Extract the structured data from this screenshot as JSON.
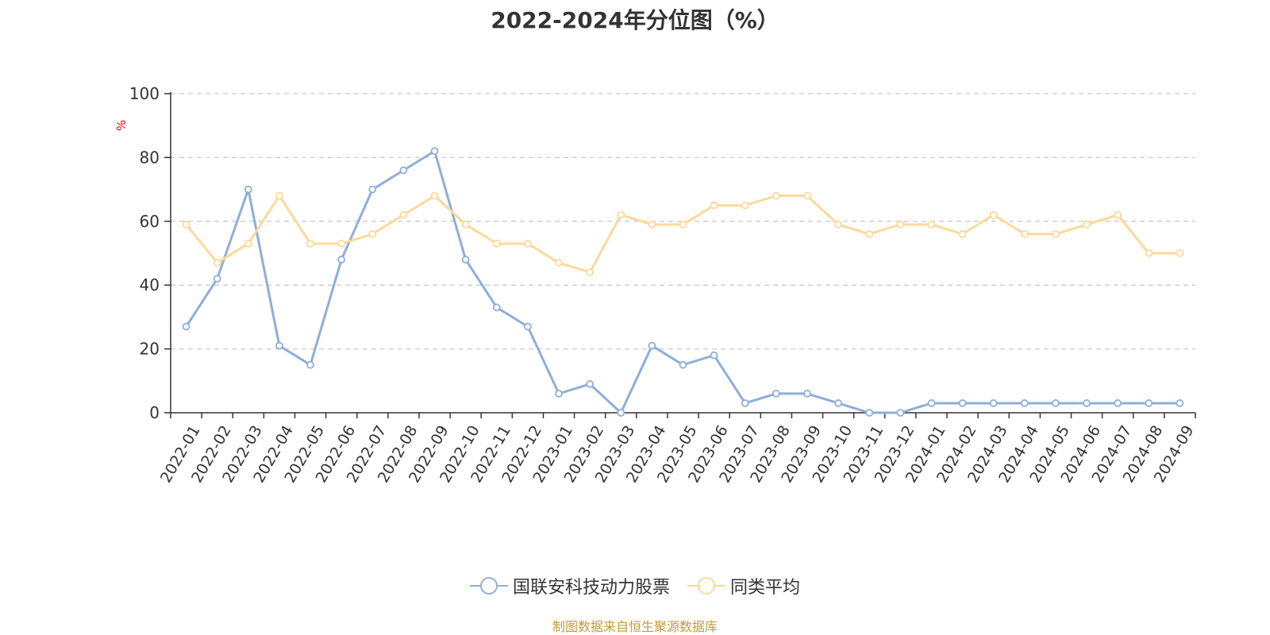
{
  "chart_data": {
    "type": "line",
    "title": "2022-2024年分位图（%）",
    "ylabel": "%",
    "ylim": [
      0,
      100
    ],
    "yticks": [
      0,
      20,
      40,
      60,
      80,
      100
    ],
    "grid": true,
    "legend_position": "bottom",
    "categories": [
      "2022-01",
      "2022-02",
      "2022-03",
      "2022-04",
      "2022-05",
      "2022-06",
      "2022-07",
      "2022-08",
      "2022-09",
      "2022-10",
      "2022-11",
      "2022-12",
      "2023-01",
      "2023-02",
      "2023-03",
      "2023-04",
      "2023-05",
      "2023-06",
      "2023-07",
      "2023-08",
      "2023-09",
      "2023-10",
      "2023-11",
      "2023-12",
      "2024-01",
      "2024-02",
      "2024-03",
      "2024-04",
      "2024-05",
      "2024-06",
      "2024-07",
      "2024-08",
      "2024-09"
    ],
    "series": [
      {
        "name": "国联安科技动力股票",
        "color": "#8eaedb",
        "values": [
          27,
          42,
          70,
          21,
          15,
          48,
          70,
          76,
          82,
          48,
          33,
          27,
          6,
          9,
          0,
          21,
          15,
          18,
          3,
          6,
          6,
          3,
          0,
          0,
          3,
          3,
          3,
          3,
          3,
          3,
          3,
          3,
          3
        ]
      },
      {
        "name": "同类平均",
        "color": "#fcd99a",
        "values": [
          59,
          47,
          53,
          68,
          53,
          53,
          56,
          62,
          68,
          59,
          53,
          53,
          47,
          44,
          62,
          59,
          59,
          65,
          65,
          68,
          68,
          59,
          56,
          59,
          59,
          56,
          62,
          56,
          56,
          59,
          62,
          50,
          50
        ]
      }
    ]
  },
  "source_text": "制图数据来自恒生聚源数据库"
}
